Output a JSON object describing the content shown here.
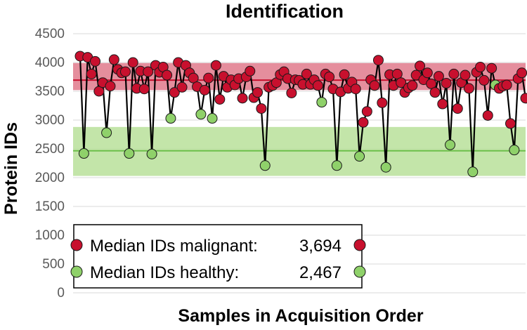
{
  "chart_data": {
    "type": "line",
    "title": "Identification",
    "xlabel": "Samples in Acquisition Order",
    "ylabel": "Protein IDs",
    "ylim": [
      0,
      4500
    ],
    "yticks": [
      0,
      500,
      1000,
      1500,
      2000,
      2500,
      3000,
      3500,
      4000,
      4500
    ],
    "grid": true,
    "legend_position": "bottom-left",
    "colors": {
      "malignant": "#c8102e",
      "healthy": "#8fd16a",
      "malignant_band": "#e07a8c",
      "healthy_band": "#b8e09a",
      "line": "#000000",
      "grid": "#d9d9d9"
    },
    "bands": [
      {
        "name": "malignant",
        "median": 3694,
        "low": 3520,
        "high": 3990
      },
      {
        "name": "healthy",
        "median": 2467,
        "low": 2030,
        "high": 2880
      }
    ],
    "series": [
      {
        "name": "Protein IDs",
        "values": [
          4110,
          2420,
          4090,
          3800,
          4020,
          3500,
          3650,
          2780,
          3590,
          4050,
          3880,
          3820,
          3840,
          2420,
          4000,
          3550,
          3850,
          3540,
          3840,
          2410,
          3950,
          3830,
          3920,
          3780,
          3030,
          3480,
          4000,
          3570,
          3950,
          3820,
          3730,
          3580,
          3100,
          3520,
          3730,
          3030,
          3950,
          3360,
          3760,
          3570,
          3700,
          3610,
          3720,
          3380,
          3750,
          3850,
          3390,
          3480,
          3200,
          2210,
          3570,
          3600,
          3650,
          3790,
          3840,
          3720,
          3470,
          3700,
          3690,
          3620,
          3800,
          3620,
          3700,
          3600,
          3310,
          3800,
          3750,
          3540,
          2210,
          3490,
          3790,
          3550,
          3660,
          3540,
          2370,
          2960,
          3150,
          3700,
          3600,
          4040,
          3300,
          2180,
          3790,
          3600,
          3800,
          3650,
          3480,
          3560,
          3600,
          3780,
          3940,
          3700,
          3820,
          3630,
          3480,
          3760,
          3280,
          3640,
          2570,
          3800,
          3200,
          3650,
          3780,
          3550,
          2100,
          3830,
          3920,
          3690,
          3080,
          3900,
          3610,
          3550,
          3590,
          3610,
          2940,
          2480,
          3720,
          3820,
          3380
        ],
        "colors": [
          "red",
          "green",
          "red",
          "red",
          "red",
          "red",
          "red",
          "green",
          "red",
          "red",
          "red",
          "red",
          "red",
          "green",
          "red",
          "red",
          "red",
          "red",
          "red",
          "green",
          "red",
          "red",
          "red",
          "red",
          "green",
          "red",
          "red",
          "red",
          "red",
          "red",
          "red",
          "red",
          "green",
          "red",
          "red",
          "green",
          "red",
          "red",
          "red",
          "red",
          "red",
          "red",
          "red",
          "red",
          "red",
          "red",
          "red",
          "red",
          "red",
          "green",
          "red",
          "red",
          "red",
          "red",
          "red",
          "red",
          "red",
          "red",
          "red",
          "red",
          "red",
          "red",
          "red",
          "red",
          "green",
          "red",
          "red",
          "red",
          "green",
          "red",
          "red",
          "red",
          "red",
          "red",
          "green",
          "red",
          "red",
          "red",
          "red",
          "red",
          "red",
          "green",
          "red",
          "red",
          "red",
          "red",
          "red",
          "red",
          "red",
          "red",
          "red",
          "red",
          "red",
          "red",
          "red",
          "red",
          "red",
          "red",
          "green",
          "red",
          "red",
          "red",
          "red",
          "red",
          "green",
          "red",
          "red",
          "red",
          "red",
          "red",
          "green",
          "red",
          "red",
          "red",
          "red",
          "green",
          "red",
          "red",
          "red"
        ]
      }
    ],
    "legend": [
      {
        "label": "Median IDs malignant:",
        "value": "3,694",
        "color": "red"
      },
      {
        "label": "Median IDs healthy:",
        "value": "2,467",
        "color": "green"
      }
    ]
  }
}
